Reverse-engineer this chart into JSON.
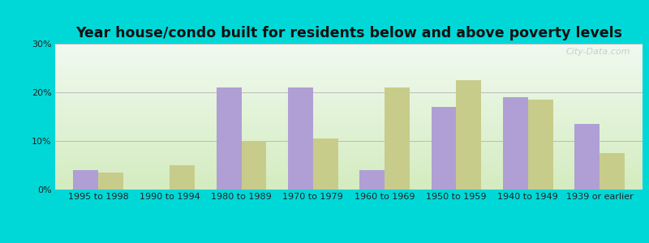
{
  "title": "Year house/condo built for residents below and above poverty levels",
  "categories": [
    "1995 to 1998",
    "1990 to 1994",
    "1980 to 1989",
    "1970 to 1979",
    "1960 to 1969",
    "1950 to 1959",
    "1940 to 1949",
    "1939 or earlier"
  ],
  "below_poverty": [
    4.0,
    0.0,
    21.0,
    21.0,
    4.0,
    17.0,
    19.0,
    13.5
  ],
  "above_poverty": [
    3.5,
    5.0,
    10.0,
    10.5,
    21.0,
    22.5,
    18.5,
    7.5
  ],
  "below_color": "#b09fd4",
  "above_color": "#c8cc8a",
  "ylim": [
    0,
    30
  ],
  "yticks": [
    0,
    10,
    20,
    30
  ],
  "ytick_labels": [
    "0%",
    "10%",
    "20%",
    "30%"
  ],
  "plot_bg_top": "#f0faf0",
  "plot_bg_bottom": "#d4ecc0",
  "outer_bg": "#00d8d8",
  "grid_color": "#bbbbbb",
  "bar_width": 0.35,
  "title_fontsize": 12.5,
  "tick_fontsize": 8,
  "legend_fontsize": 9.5,
  "watermark": "City-Data.com"
}
